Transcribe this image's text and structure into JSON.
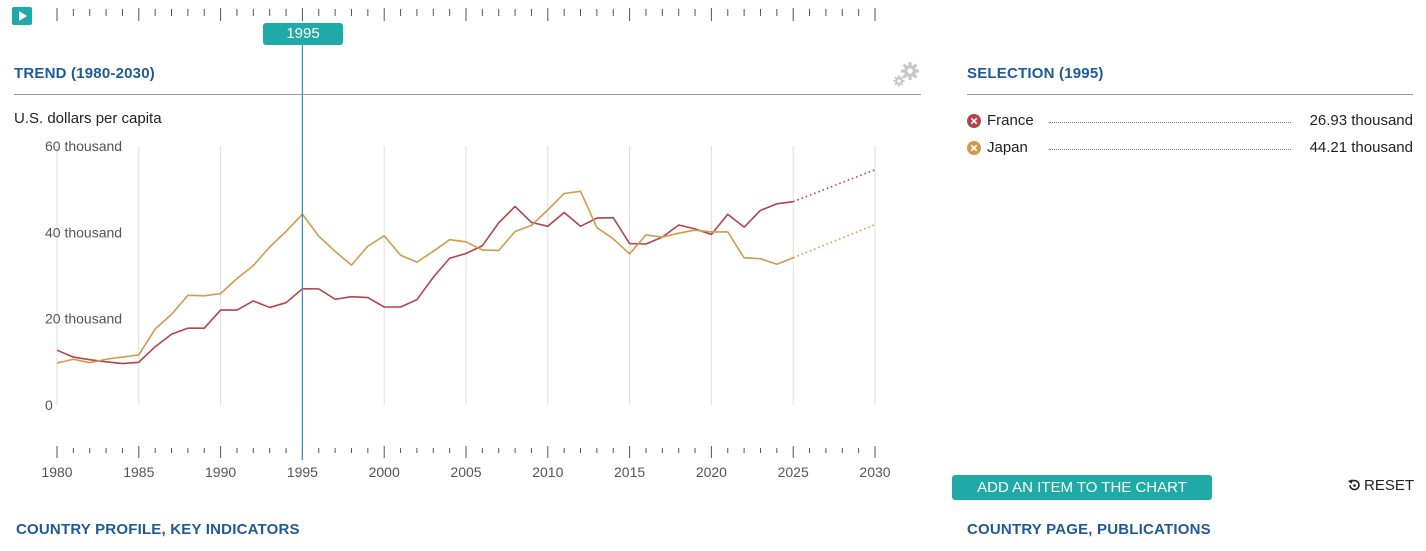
{
  "controls": {
    "play_icon": "play-icon",
    "selected_year": "1995",
    "settings_icon": "gear-icon",
    "accent_color": "#1fa9a7"
  },
  "trend": {
    "title": "TREND (1980-2030)",
    "unit_label": "U.S. dollars per capita"
  },
  "selection": {
    "title": "SELECTION (1995)",
    "items": [
      {
        "name": "France",
        "value": "26.93 thousand",
        "color": "#b0444f"
      },
      {
        "name": "Japan",
        "value": "44.21 thousand",
        "color": "#d29a4b"
      }
    ]
  },
  "buttons": {
    "add_item": "ADD AN ITEM TO THE CHART",
    "reset": "RESET"
  },
  "links": {
    "country_profile": "COUNTRY PROFILE, KEY INDICATORS",
    "country_page": "COUNTRY PAGE, PUBLICATIONS"
  },
  "chart_data": {
    "type": "line",
    "xlim": [
      1980,
      2030
    ],
    "ylim": [
      0,
      60000
    ],
    "x_ticks": [
      1980,
      1985,
      1990,
      1995,
      2000,
      2005,
      2010,
      2015,
      2020,
      2025,
      2030
    ],
    "y_ticks": [
      {
        "value": 0,
        "label": "0"
      },
      {
        "value": 20000,
        "label": "20 thousand"
      },
      {
        "value": 40000,
        "label": "40 thousand"
      },
      {
        "value": 60000,
        "label": "60 thousand"
      }
    ],
    "selected_year": 1995,
    "projection_start": 2025,
    "series": [
      {
        "name": "France",
        "color": "#b0444f",
        "points": [
          [
            1980,
            12700
          ],
          [
            1981,
            11100
          ],
          [
            1982,
            10500
          ],
          [
            1983,
            10000
          ],
          [
            1984,
            9600
          ],
          [
            1985,
            9900
          ],
          [
            1986,
            13500
          ],
          [
            1987,
            16400
          ],
          [
            1988,
            17800
          ],
          [
            1989,
            17800
          ],
          [
            1990,
            22000
          ],
          [
            1991,
            22000
          ],
          [
            1992,
            24100
          ],
          [
            1993,
            22600
          ],
          [
            1994,
            23700
          ],
          [
            1995,
            26930
          ],
          [
            1996,
            26900
          ],
          [
            1997,
            24500
          ],
          [
            1998,
            25100
          ],
          [
            1999,
            24900
          ],
          [
            2000,
            22700
          ],
          [
            2001,
            22700
          ],
          [
            2002,
            24400
          ],
          [
            2003,
            29600
          ],
          [
            2004,
            34000
          ],
          [
            2005,
            35100
          ],
          [
            2006,
            36900
          ],
          [
            2007,
            42200
          ],
          [
            2008,
            46000
          ],
          [
            2009,
            42300
          ],
          [
            2010,
            41400
          ],
          [
            2011,
            44600
          ],
          [
            2012,
            41400
          ],
          [
            2013,
            43300
          ],
          [
            2014,
            43400
          ],
          [
            2015,
            37400
          ],
          [
            2016,
            37300
          ],
          [
            2017,
            38900
          ],
          [
            2018,
            41700
          ],
          [
            2019,
            40800
          ],
          [
            2020,
            39500
          ],
          [
            2021,
            44200
          ],
          [
            2022,
            41200
          ],
          [
            2023,
            45100
          ],
          [
            2024,
            46600
          ],
          [
            2025,
            47100
          ],
          [
            2030,
            54500
          ]
        ]
      },
      {
        "name": "Japan",
        "color": "#d29a4b",
        "points": [
          [
            1980,
            9700
          ],
          [
            1981,
            10600
          ],
          [
            1982,
            9800
          ],
          [
            1983,
            10600
          ],
          [
            1984,
            11100
          ],
          [
            1985,
            11600
          ],
          [
            1986,
            17600
          ],
          [
            1987,
            21000
          ],
          [
            1988,
            25400
          ],
          [
            1989,
            25300
          ],
          [
            1990,
            25800
          ],
          [
            1991,
            29300
          ],
          [
            1992,
            32300
          ],
          [
            1993,
            36600
          ],
          [
            1994,
            40200
          ],
          [
            1995,
            44210
          ],
          [
            1996,
            39100
          ],
          [
            1997,
            35600
          ],
          [
            1998,
            32400
          ],
          [
            1999,
            36800
          ],
          [
            2000,
            39200
          ],
          [
            2001,
            34700
          ],
          [
            2002,
            33100
          ],
          [
            2003,
            35600
          ],
          [
            2004,
            38300
          ],
          [
            2005,
            37800
          ],
          [
            2006,
            35900
          ],
          [
            2007,
            35800
          ],
          [
            2008,
            40200
          ],
          [
            2009,
            41600
          ],
          [
            2010,
            45200
          ],
          [
            2011,
            49000
          ],
          [
            2012,
            49500
          ],
          [
            2013,
            41100
          ],
          [
            2014,
            38500
          ],
          [
            2015,
            35000
          ],
          [
            2016,
            39400
          ],
          [
            2017,
            38900
          ],
          [
            2018,
            39800
          ],
          [
            2019,
            40500
          ],
          [
            2020,
            40100
          ],
          [
            2021,
            40100
          ],
          [
            2022,
            34100
          ],
          [
            2023,
            33900
          ],
          [
            2024,
            32600
          ],
          [
            2025,
            34100
          ],
          [
            2030,
            41800
          ]
        ]
      }
    ]
  }
}
